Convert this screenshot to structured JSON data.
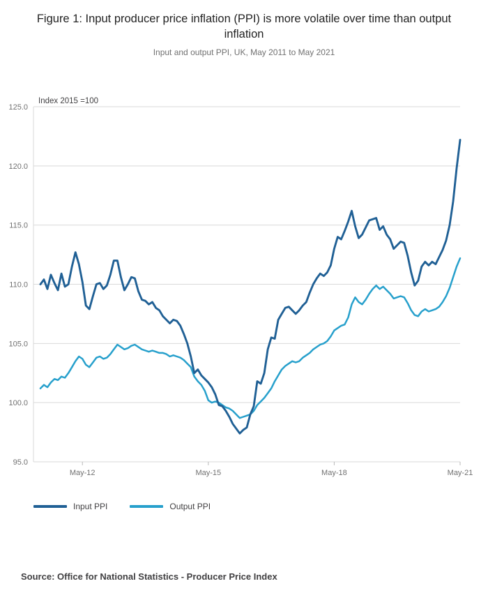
{
  "figure": {
    "title": "Figure 1: Input producer price inflation (PPI) is more volatile over time than output inflation",
    "subtitle": "Input and output PPI, UK, May 2011 to May 2021",
    "annotation": "Index 2015 =100",
    "source": "Source: Office for National Statistics - Producer Price Index"
  },
  "chart_data": {
    "type": "line",
    "title": "Figure 1: Input producer price inflation (PPI) is more volatile over time than output inflation",
    "subtitle": "Input and output PPI, UK, May 2011 to May 2021",
    "x_unit": "month",
    "x_start": "May-2011",
    "x_end": "May-2021",
    "ylim": [
      95,
      125
    ],
    "grid": "horizontal",
    "legend_position": "bottom",
    "yticks": [
      {
        "value": 95,
        "label": "95.0"
      },
      {
        "value": 100,
        "label": "100.0"
      },
      {
        "value": 105,
        "label": "105.0"
      },
      {
        "value": 110,
        "label": "110.0"
      },
      {
        "value": 115,
        "label": "115.0"
      },
      {
        "value": 120,
        "label": "120.0"
      },
      {
        "value": 125,
        "label": "125.0"
      }
    ],
    "xticks": [
      {
        "month_index": 12,
        "label": "May-12"
      },
      {
        "month_index": 48,
        "label": "May-15"
      },
      {
        "month_index": 84,
        "label": "May-18"
      },
      {
        "month_index": 120,
        "label": "May-21"
      }
    ],
    "series": [
      {
        "name": "Input PPI",
        "color": "#206095",
        "values": [
          110.0,
          110.4,
          109.6,
          110.8,
          110.1,
          109.5,
          110.9,
          109.8,
          110.0,
          111.5,
          112.7,
          111.7,
          110.2,
          108.2,
          107.9,
          109.0,
          110.0,
          110.1,
          109.6,
          109.9,
          110.8,
          112.0,
          112.0,
          110.6,
          109.5,
          110.0,
          110.6,
          110.5,
          109.4,
          108.7,
          108.6,
          108.3,
          108.5,
          108.0,
          107.8,
          107.3,
          107.0,
          106.7,
          107.0,
          106.9,
          106.5,
          105.8,
          105.0,
          103.9,
          102.5,
          102.8,
          102.3,
          102.0,
          101.7,
          101.3,
          100.7,
          99.8,
          99.7,
          99.3,
          98.8,
          98.2,
          97.8,
          97.4,
          97.7,
          97.9,
          99.0,
          99.7,
          101.8,
          101.6,
          102.5,
          104.5,
          105.5,
          105.4,
          107.0,
          107.5,
          108.0,
          108.1,
          107.8,
          107.5,
          107.8,
          108.2,
          108.5,
          109.3,
          110.0,
          110.5,
          110.9,
          110.7,
          111.0,
          111.6,
          113.0,
          114.0,
          113.8,
          114.5,
          115.3,
          116.2,
          114.9,
          113.9,
          114.2,
          114.8,
          115.4,
          115.5,
          115.6,
          114.6,
          114.9,
          114.2,
          113.8,
          113.0,
          113.3,
          113.6,
          113.5,
          112.4,
          111.0,
          109.9,
          110.3,
          111.5,
          111.9,
          111.6,
          111.9,
          111.7,
          112.3,
          112.9,
          113.7,
          115.0,
          117.0,
          119.8,
          122.2
        ]
      },
      {
        "name": "Output PPI",
        "color": "#27A0CC",
        "values": [
          101.2,
          101.5,
          101.3,
          101.7,
          102.0,
          101.9,
          102.2,
          102.1,
          102.5,
          103.0,
          103.5,
          103.9,
          103.7,
          103.2,
          103.0,
          103.4,
          103.8,
          103.9,
          103.7,
          103.8,
          104.1,
          104.5,
          104.9,
          104.7,
          104.5,
          104.6,
          104.8,
          104.9,
          104.7,
          104.5,
          104.4,
          104.3,
          104.4,
          104.3,
          104.2,
          104.2,
          104.1,
          103.9,
          104.0,
          103.9,
          103.8,
          103.6,
          103.3,
          103.0,
          102.2,
          101.8,
          101.5,
          101.0,
          100.2,
          100.0,
          100.1,
          100.0,
          99.8,
          99.6,
          99.5,
          99.3,
          99.0,
          98.7,
          98.8,
          98.9,
          99.0,
          99.3,
          99.8,
          100.1,
          100.4,
          100.8,
          101.2,
          101.8,
          102.3,
          102.8,
          103.1,
          103.3,
          103.5,
          103.4,
          103.5,
          103.8,
          104.0,
          104.2,
          104.5,
          104.7,
          104.9,
          105.0,
          105.2,
          105.6,
          106.1,
          106.3,
          106.5,
          106.6,
          107.2,
          108.3,
          108.9,
          108.5,
          108.3,
          108.7,
          109.2,
          109.6,
          109.9,
          109.6,
          109.8,
          109.5,
          109.2,
          108.8,
          108.9,
          109.0,
          108.9,
          108.4,
          107.8,
          107.4,
          107.3,
          107.7,
          107.9,
          107.7,
          107.8,
          107.9,
          108.1,
          108.5,
          109.0,
          109.7,
          110.6,
          111.5,
          112.2
        ]
      }
    ]
  }
}
